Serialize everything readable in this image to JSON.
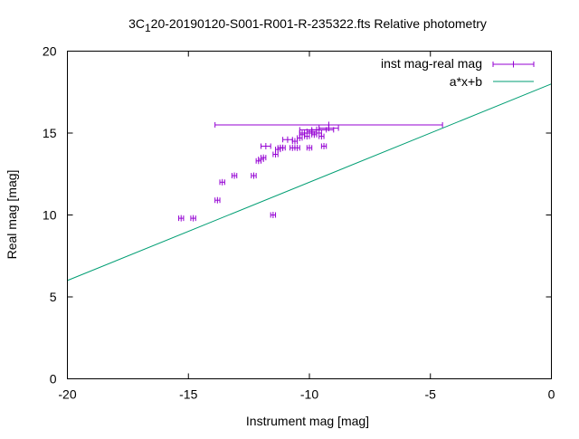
{
  "chart_data": {
    "type": "scatter",
    "title_prefix": "3C",
    "title_sub": "1",
    "title_suffix": "20-20190120-S001-R001-R-235322.fts Relative photometry",
    "xlabel": "Instrument mag [mag]",
    "ylabel": "Real mag [mag]",
    "xlim": [
      -20,
      0
    ],
    "ylim": [
      0,
      20
    ],
    "xticks": [
      -20,
      -15,
      -10,
      -5,
      0
    ],
    "yticks": [
      0,
      5,
      10,
      15,
      20
    ],
    "grid": false,
    "legend_position": "top-right",
    "colors": {
      "points": "#9400d3",
      "fit": "#009e73"
    },
    "series": [
      {
        "name": "inst mag-real mag",
        "kind": "points_with_xerr",
        "points": [
          {
            "x": -15.3,
            "y": 9.8,
            "xerr": 0.1
          },
          {
            "x": -14.8,
            "y": 9.8,
            "xerr": 0.1
          },
          {
            "x": -13.8,
            "y": 10.9,
            "xerr": 0.1
          },
          {
            "x": -13.6,
            "y": 12.0,
            "xerr": 0.1
          },
          {
            "x": -13.1,
            "y": 12.4,
            "xerr": 0.1
          },
          {
            "x": -12.3,
            "y": 12.4,
            "xerr": 0.1
          },
          {
            "x": -12.1,
            "y": 13.3,
            "xerr": 0.1
          },
          {
            "x": -12.0,
            "y": 13.4,
            "xerr": 0.1
          },
          {
            "x": -11.9,
            "y": 13.5,
            "xerr": 0.1
          },
          {
            "x": -11.8,
            "y": 14.2,
            "xerr": 0.2
          },
          {
            "x": -11.5,
            "y": 10.0,
            "xerr": 0.1
          },
          {
            "x": -11.4,
            "y": 13.7,
            "xerr": 0.1
          },
          {
            "x": -11.3,
            "y": 14.0,
            "xerr": 0.1
          },
          {
            "x": -11.2,
            "y": 14.1,
            "xerr": 0.1
          },
          {
            "x": -11.1,
            "y": 14.1,
            "xerr": 0.1
          },
          {
            "x": -10.9,
            "y": 14.6,
            "xerr": 0.2
          },
          {
            "x": -10.7,
            "y": 14.1,
            "xerr": 0.1
          },
          {
            "x": -10.6,
            "y": 14.5,
            "xerr": 0.1
          },
          {
            "x": -10.5,
            "y": 14.1,
            "xerr": 0.1
          },
          {
            "x": -10.4,
            "y": 14.7,
            "xerr": 0.1
          },
          {
            "x": -10.3,
            "y": 14.9,
            "xerr": 0.1
          },
          {
            "x": -10.2,
            "y": 15.0,
            "xerr": 0.2
          },
          {
            "x": -10.1,
            "y": 14.8,
            "xerr": 0.1
          },
          {
            "x": -10.0,
            "y": 15.0,
            "xerr": 0.3
          },
          {
            "x": -10.0,
            "y": 14.1,
            "xerr": 0.1
          },
          {
            "x": -9.9,
            "y": 15.1,
            "xerr": 0.2
          },
          {
            "x": -9.8,
            "y": 14.9,
            "xerr": 0.1
          },
          {
            "x": -9.7,
            "y": 15.0,
            "xerr": 0.2
          },
          {
            "x": -9.6,
            "y": 15.2,
            "xerr": 0.3
          },
          {
            "x": -9.5,
            "y": 14.8,
            "xerr": 0.1
          },
          {
            "x": -9.4,
            "y": 14.2,
            "xerr": 0.1
          },
          {
            "x": -9.2,
            "y": 15.3,
            "xerr": 0.4
          },
          {
            "x": -9.7,
            "y": 15.2,
            "xerr": 0.7
          },
          {
            "x": -9.2,
            "y": 15.5,
            "xerr": 4.7
          }
        ]
      },
      {
        "name": "a*x+b",
        "kind": "line",
        "slope": 0.6,
        "intercept": 18.0
      }
    ]
  }
}
